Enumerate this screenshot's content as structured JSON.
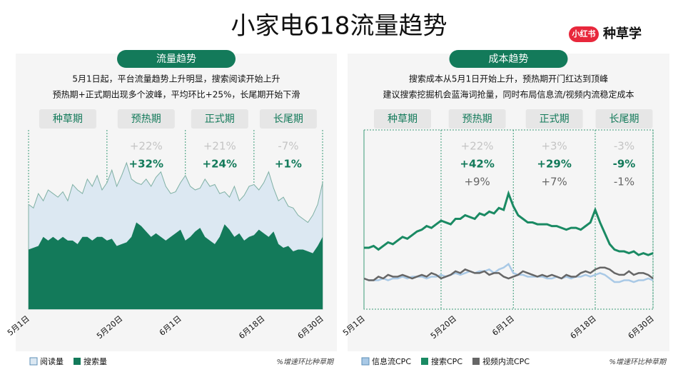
{
  "header": {
    "title": "小家电618流量趋势",
    "logo_badge": "小红书",
    "logo_text": "种草学"
  },
  "chart_data": [
    {
      "type": "area",
      "title": "流量趋势",
      "description": [
        "5月1日起，平台流量趋势上升明显，搜索阅读开始上升",
        "预热期+正式期出现多个波峰，平均环比+25%，长尾期开始下滑"
      ],
      "phases": [
        {
          "name": "种草期"
        },
        {
          "name": "预热期",
          "stats": [
            "+22%",
            "+32%"
          ]
        },
        {
          "name": "正式期",
          "stats": [
            "+21%",
            "+24%"
          ]
        },
        {
          "name": "长尾期",
          "stats": [
            "-7%",
            "+1%"
          ]
        }
      ],
      "phase_bounds": [
        0,
        16,
        32,
        46,
        60
      ],
      "categories": [
        "5月1日",
        null,
        null,
        null,
        null,
        null,
        null,
        null,
        null,
        null,
        null,
        null,
        null,
        null,
        null,
        null,
        null,
        null,
        null,
        "5月20日",
        null,
        null,
        null,
        null,
        null,
        null,
        null,
        null,
        null,
        null,
        null,
        "6月1日",
        null,
        null,
        null,
        null,
        null,
        null,
        null,
        null,
        null,
        null,
        null,
        null,
        null,
        null,
        null,
        null,
        "6月18日",
        null,
        null,
        null,
        null,
        null,
        null,
        null,
        null,
        null,
        null,
        null,
        "6月30日"
      ],
      "ylim": [
        0,
        100
      ],
      "series": [
        {
          "name": "阅读量",
          "color": "#dce8f2",
          "values": [
            58,
            56,
            64,
            60,
            66,
            64,
            62,
            65,
            60,
            69,
            66,
            64,
            72,
            68,
            74,
            66,
            70,
            77,
            68,
            74,
            81,
            72,
            70,
            69,
            72,
            68,
            73,
            76,
            68,
            64,
            65,
            70,
            74,
            68,
            66,
            67,
            72,
            68,
            69,
            64,
            65,
            62,
            68,
            60,
            63,
            68,
            69,
            66,
            70,
            76,
            67,
            60,
            62,
            57,
            56,
            52,
            50,
            48,
            52,
            58,
            70
          ]
        },
        {
          "name": "搜索量",
          "color": "#137a5a",
          "values": [
            33,
            34,
            35,
            40,
            38,
            40,
            38,
            40,
            38,
            38,
            36,
            40,
            40,
            38,
            40,
            40,
            38,
            39,
            35,
            36,
            37,
            40,
            48,
            46,
            43,
            40,
            42,
            40,
            38,
            40,
            42,
            44,
            38,
            40,
            43,
            45,
            40,
            38,
            36,
            40,
            47,
            44,
            40,
            42,
            38,
            40,
            41,
            44,
            42,
            40,
            43,
            36,
            34,
            35,
            32,
            33,
            33,
            32,
            31,
            35,
            40
          ]
        }
      ],
      "note": "%增速环比种草期"
    },
    {
      "type": "line",
      "title": "成本趋势",
      "description": [
        "搜索成本从5月1日开始上升，预热期开门红达到顶峰",
        "建议搜索挖掘机会蓝海词抢量，同时布局信息流/视频内流稳定成本"
      ],
      "phases": [
        {
          "name": "种草期"
        },
        {
          "name": "预热期",
          "stats": [
            "+22%",
            "+42%",
            "+9%"
          ]
        },
        {
          "name": "正式期",
          "stats": [
            "+3%",
            "+29%",
            "+7%"
          ]
        },
        {
          "name": "长尾期",
          "stats": [
            "-3%",
            "-9%",
            "-1%"
          ]
        }
      ],
      "phase_bounds": [
        0,
        16,
        31,
        48,
        60
      ],
      "categories": [
        "5月1日",
        null,
        null,
        null,
        null,
        null,
        null,
        null,
        null,
        null,
        null,
        null,
        null,
        null,
        null,
        null,
        null,
        null,
        null,
        "5月20日",
        null,
        null,
        null,
        null,
        null,
        null,
        null,
        null,
        null,
        null,
        null,
        "6月1日",
        null,
        null,
        null,
        null,
        null,
        null,
        null,
        null,
        null,
        null,
        null,
        null,
        null,
        null,
        null,
        null,
        "6月18日",
        null,
        null,
        null,
        null,
        null,
        null,
        null,
        null,
        null,
        null,
        null,
        "6月30日"
      ],
      "ylim": [
        0,
        100
      ],
      "series": [
        {
          "name": "信息流CPC",
          "color": "#a9c9e6",
          "values": [
            17,
            16,
            16,
            16,
            17,
            16,
            17,
            17,
            18,
            17,
            18,
            18,
            18,
            17,
            18,
            18,
            19,
            18,
            19,
            20,
            19,
            20,
            21,
            20,
            21,
            21,
            22,
            20,
            22,
            23,
            25,
            20,
            19,
            19,
            18,
            18,
            18,
            18,
            17,
            17,
            18,
            17,
            18,
            17,
            18,
            18,
            19,
            18,
            19,
            20,
            19,
            17,
            15,
            15,
            16,
            16,
            15,
            16,
            16,
            17,
            16
          ]
        },
        {
          "name": "搜索CPC",
          "color": "#1a8a63",
          "values": [
            34,
            34,
            35,
            33,
            35,
            37,
            36,
            38,
            40,
            39,
            41,
            43,
            44,
            46,
            45,
            47,
            49,
            48,
            47,
            50,
            50,
            52,
            51,
            50,
            53,
            52,
            54,
            53,
            56,
            55,
            64,
            57,
            52,
            50,
            48,
            48,
            47,
            47,
            47,
            46,
            46,
            45,
            44,
            45,
            45,
            44,
            46,
            48,
            55,
            48,
            42,
            36,
            33,
            32,
            32,
            31,
            32,
            30,
            31,
            30,
            31
          ]
        },
        {
          "name": "视频内流CPC",
          "color": "#666666",
          "values": [
            17,
            16,
            16,
            18,
            17,
            19,
            18,
            18,
            19,
            18,
            17,
            18,
            19,
            18,
            20,
            19,
            17,
            18,
            19,
            21,
            20,
            22,
            21,
            20,
            20,
            21,
            19,
            20,
            20,
            18,
            17,
            18,
            19,
            21,
            20,
            19,
            18,
            19,
            18,
            19,
            18,
            17,
            19,
            18,
            18,
            20,
            21,
            20,
            22,
            23,
            23,
            22,
            20,
            19,
            19,
            21,
            19,
            20,
            20,
            19,
            17
          ]
        }
      ],
      "note": "%增速环比种草期"
    }
  ]
}
